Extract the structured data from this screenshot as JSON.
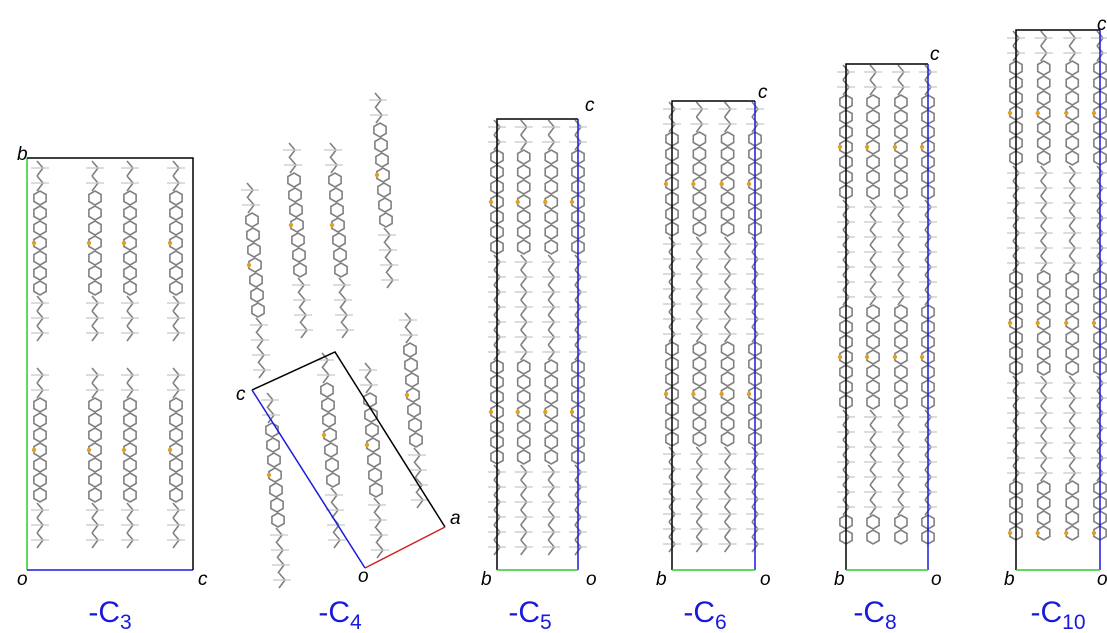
{
  "panels": [
    {
      "name": "-C",
      "subscript": "3",
      "axis_labels": [
        "b",
        "o",
        "c"
      ]
    },
    {
      "name": "-C",
      "subscript": "4",
      "axis_labels": [
        "c",
        "a",
        "o"
      ]
    },
    {
      "name": "-C",
      "subscript": "5",
      "axis_labels": [
        "c",
        "b",
        "o"
      ]
    },
    {
      "name": "-C",
      "subscript": "6",
      "axis_labels": [
        "c",
        "b",
        "o"
      ]
    },
    {
      "name": "-C",
      "subscript": "8",
      "axis_labels": [
        "c",
        "b",
        "o"
      ]
    },
    {
      "name": "-C",
      "subscript": "10",
      "axis_labels": [
        "c",
        "b",
        "o"
      ]
    }
  ]
}
